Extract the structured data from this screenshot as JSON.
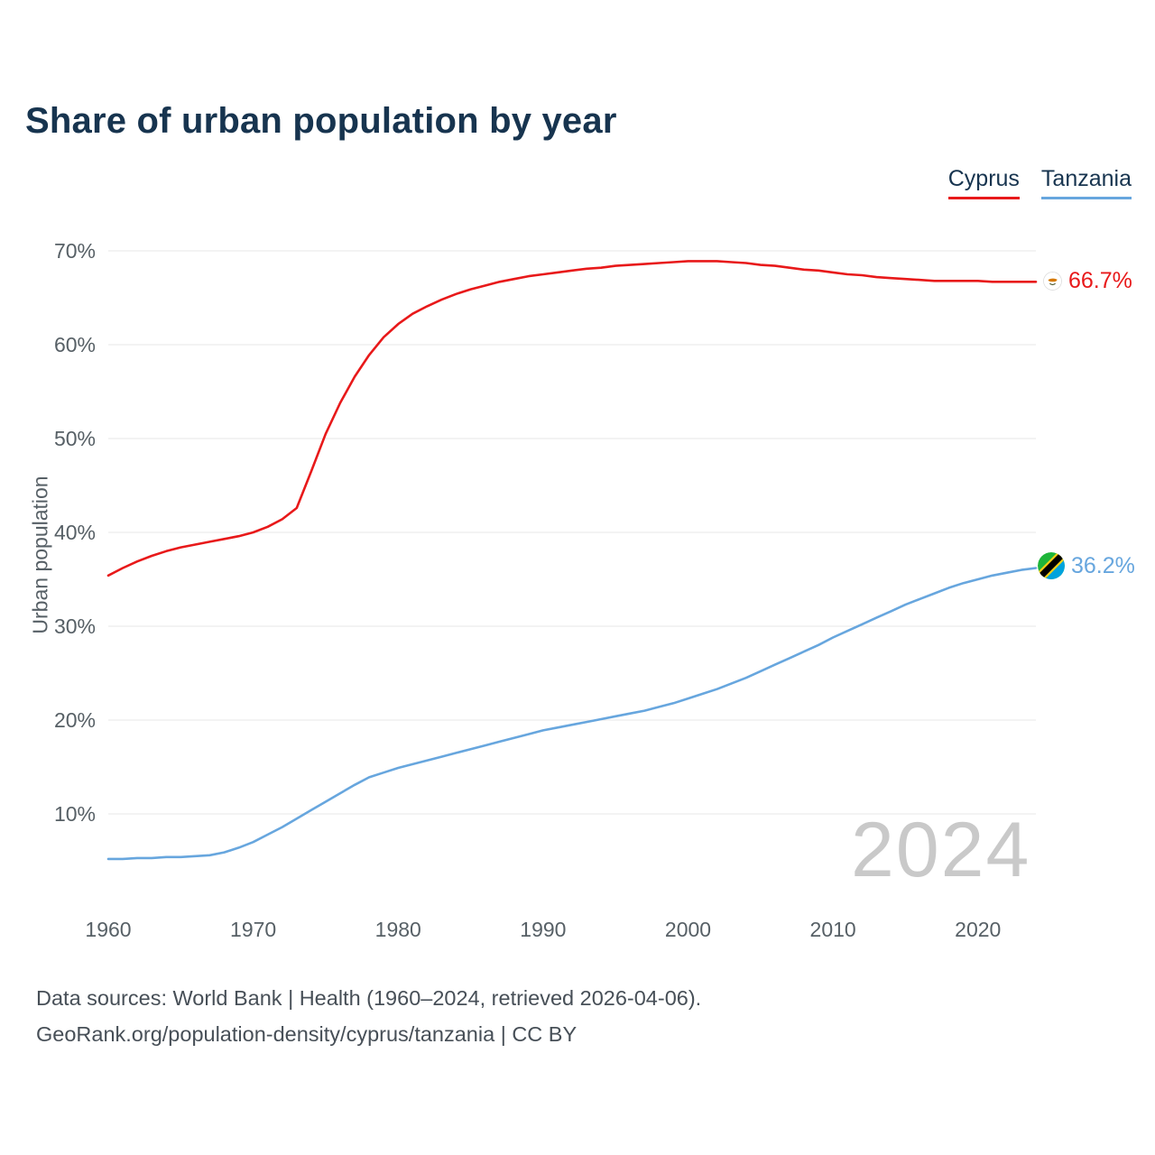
{
  "title": "Share of urban population by year",
  "legend": {
    "items": [
      {
        "label": "Cyprus",
        "color": "#e8191a"
      },
      {
        "label": "Tanzania",
        "color": "#67a6de"
      }
    ]
  },
  "y_axis": {
    "label": "Urban population"
  },
  "end_labels": {
    "cyprus": {
      "text": "66.7%",
      "color": "#e8191a"
    },
    "tanzania": {
      "text": "36.2%",
      "color": "#67a6de"
    }
  },
  "watermark": "2024",
  "footer": {
    "line1": "Data sources: World Bank | Health (1960–2024, retrieved 2026-04-06).",
    "line2": "GeoRank.org/population-density/cyprus/tanzania | CC BY"
  },
  "chart_data": {
    "type": "line",
    "title": "Share of urban population by year",
    "xlabel": "",
    "ylabel": "Urban population",
    "ylim": [
      5,
      72
    ],
    "yticks": [
      10,
      20,
      30,
      40,
      50,
      60,
      70
    ],
    "xticks": [
      1960,
      1970,
      1980,
      1990,
      2000,
      2010,
      2020
    ],
    "grid": "horizontal",
    "legend_position": "top-right",
    "x": [
      1960,
      1961,
      1962,
      1963,
      1964,
      1965,
      1966,
      1967,
      1968,
      1969,
      1970,
      1971,
      1972,
      1973,
      1974,
      1975,
      1976,
      1977,
      1978,
      1979,
      1980,
      1981,
      1982,
      1983,
      1984,
      1985,
      1986,
      1987,
      1988,
      1989,
      1990,
      1991,
      1992,
      1993,
      1994,
      1995,
      1996,
      1997,
      1998,
      1999,
      2000,
      2001,
      2002,
      2003,
      2004,
      2005,
      2006,
      2007,
      2008,
      2009,
      2010,
      2011,
      2012,
      2013,
      2014,
      2015,
      2016,
      2017,
      2018,
      2019,
      2020,
      2021,
      2022,
      2023,
      2024
    ],
    "series": [
      {
        "name": "Cyprus",
        "color": "#e8191a",
        "values": [
          35.4,
          36.2,
          36.9,
          37.5,
          38.0,
          38.4,
          38.7,
          39.0,
          39.3,
          39.6,
          40.0,
          40.6,
          41.4,
          42.6,
          46.5,
          50.5,
          53.8,
          56.6,
          58.9,
          60.8,
          62.2,
          63.3,
          64.1,
          64.8,
          65.4,
          65.9,
          66.3,
          66.7,
          67.0,
          67.3,
          67.5,
          67.7,
          67.9,
          68.1,
          68.2,
          68.4,
          68.5,
          68.6,
          68.7,
          68.8,
          68.9,
          68.9,
          68.9,
          68.8,
          68.7,
          68.5,
          68.4,
          68.2,
          68.0,
          67.9,
          67.7,
          67.5,
          67.4,
          67.2,
          67.1,
          67.0,
          66.9,
          66.8,
          66.8,
          66.8,
          66.8,
          66.7,
          66.7,
          66.7,
          66.7
        ]
      },
      {
        "name": "Tanzania",
        "color": "#67a6de",
        "values": [
          5.2,
          5.2,
          5.3,
          5.3,
          5.4,
          5.4,
          5.5,
          5.6,
          5.9,
          6.4,
          7.0,
          7.8,
          8.6,
          9.5,
          10.4,
          11.3,
          12.2,
          13.1,
          13.9,
          14.4,
          14.9,
          15.3,
          15.7,
          16.1,
          16.5,
          16.9,
          17.3,
          17.7,
          18.1,
          18.5,
          18.9,
          19.2,
          19.5,
          19.8,
          20.1,
          20.4,
          20.7,
          21.0,
          21.4,
          21.8,
          22.3,
          22.8,
          23.3,
          23.9,
          24.5,
          25.2,
          25.9,
          26.6,
          27.3,
          28.0,
          28.8,
          29.5,
          30.2,
          30.9,
          31.6,
          32.3,
          32.9,
          33.5,
          34.1,
          34.6,
          35.0,
          35.4,
          35.7,
          36.0,
          36.2
        ]
      }
    ]
  }
}
